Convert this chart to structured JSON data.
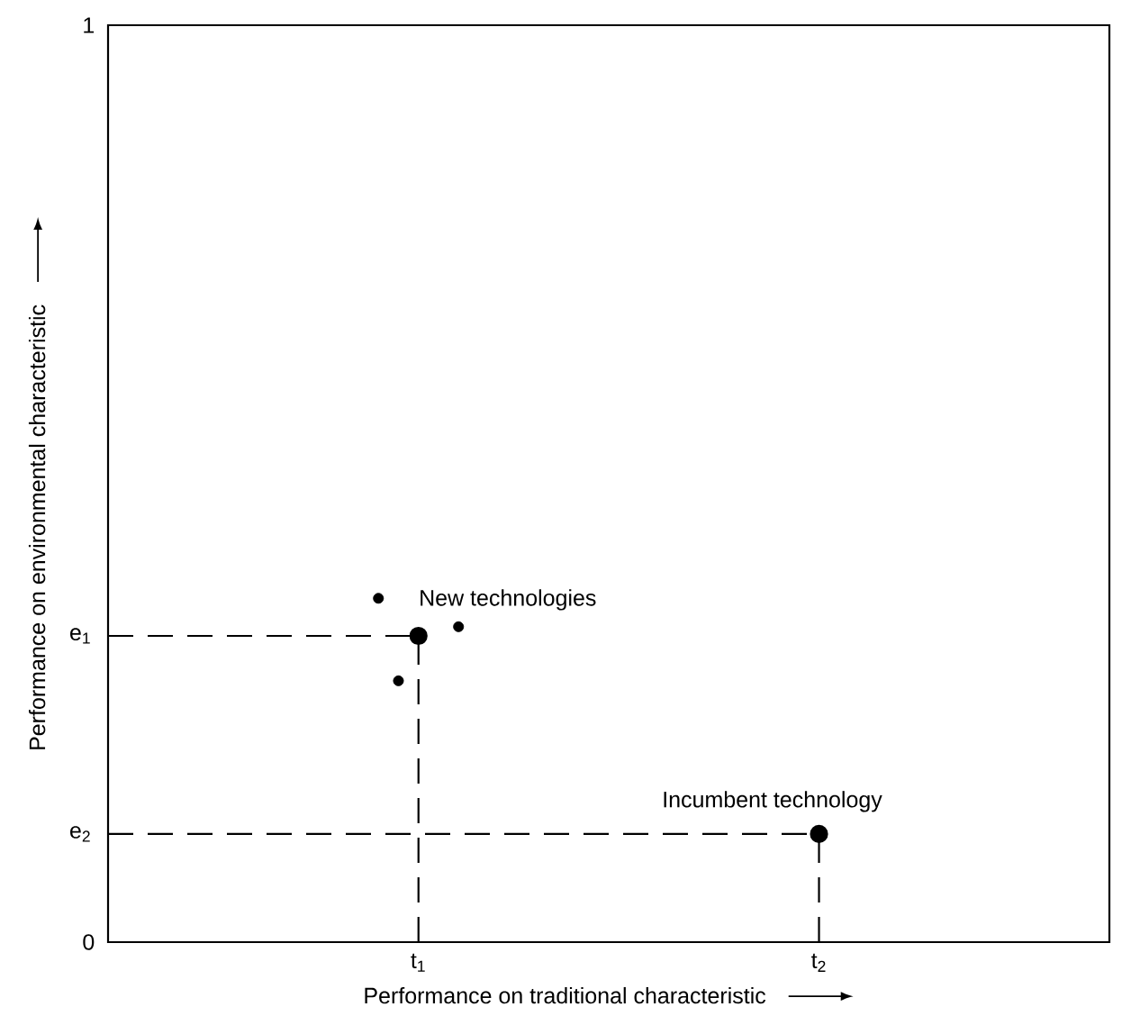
{
  "chart_data": {
    "type": "scatter",
    "xlabel": "Performance on traditional characteristic",
    "ylabel": "Performance on environmental characteristic",
    "categories": [
      null,
      null,
      null,
      null,
      null,
      null,
      null,
      null,
      null,
      null,
      null,
      null,
      null,
      null,
      null,
      "t$_{1}$",
      null,
      null,
      null,
      null,
      null,
      null,
      null,
      null,
      null,
      null,
      null,
      null,
      null,
      null,
      null,
      null,
      null,
      null,
      null,
      "t$_{2}$",
      null,
      null,
      null,
      null,
      null,
      null,
      null,
      null,
      null,
      null,
      null,
      null,
      null,
      null
    ],
    "ylim": [
      0,
      1
    ],
    "yticks": [
      0,
      1
    ],
    "marker": "circle",
    "ref_lines": [
      {
        "axis": "y",
        "value": 0.334,
        "label": "e$_{1}$",
        "color": "#000000",
        "line_style": "dashed"
      },
      {
        "axis": "y",
        "value": 0.118,
        "label": "e$_{2}$",
        "color": "#000000",
        "line_style": "dashed"
      }
    ],
    "series": [
      {
        "type": "lollipop",
        "line_style": "dashed",
        "color": "#000000",
        "values": [
          null,
          null,
          null,
          null,
          null,
          null,
          null,
          null,
          null,
          null,
          null,
          null,
          null,
          null,
          null,
          0.334,
          null,
          null,
          null,
          null,
          null,
          null,
          null,
          null,
          null,
          null,
          null,
          null,
          null,
          null,
          null,
          null,
          null,
          null,
          null,
          0.118,
          null,
          null,
          null,
          null,
          null,
          null,
          null,
          null,
          null,
          null,
          null,
          null,
          null,
          null
        ]
      },
      {
        "type": "scatter",
        "color": "#000000",
        "values": [
          null,
          null,
          null,
          null,
          null,
          null,
          null,
          null,
          null,
          null,
          null,
          null,
          null,
          0.375,
          0.285,
          null,
          null,
          0.344,
          null,
          null,
          null,
          null,
          null,
          null,
          null,
          null,
          null,
          null,
          null,
          null,
          null,
          null,
          null,
          null,
          null,
          null,
          null,
          null,
          null,
          null,
          null,
          null,
          null,
          null,
          null,
          null,
          null,
          null,
          null,
          null
        ]
      }
    ],
    "annotations": [
      {
        "text": "New technologies",
        "x": "t$_{1}$",
        "y": 0.334
      },
      {
        "text": "Incumbent technology",
        "x": "t$_{2}$",
        "y": 0.118
      }
    ]
  }
}
